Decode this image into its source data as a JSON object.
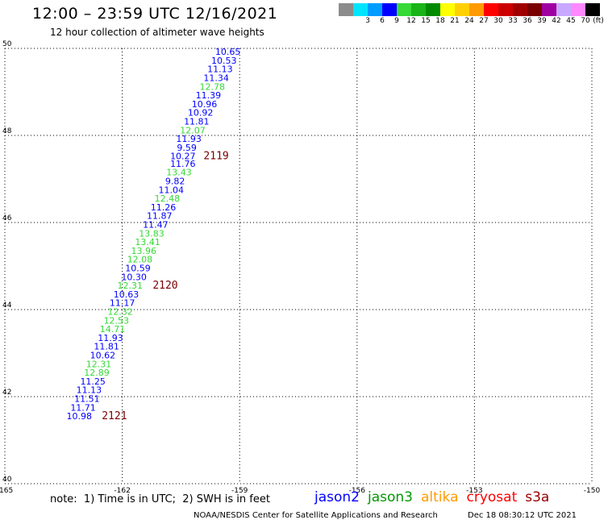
{
  "header": {
    "title": "12:00 – 23:59 UTC 12/16/2021",
    "subtitle": "12 hour collection of altimeter wave heights"
  },
  "legend": {
    "unit": "(ft)",
    "swatches": [
      {
        "label": "",
        "color": "#8c8c8c"
      },
      {
        "label": "3",
        "color": "#00e5ff"
      },
      {
        "label": "6",
        "color": "#009cff"
      },
      {
        "label": "9",
        "color": "#0000ff"
      },
      {
        "label": "12",
        "color": "#36d936"
      },
      {
        "label": "15",
        "color": "#18b418"
      },
      {
        "label": "18",
        "color": "#008a00"
      },
      {
        "label": "21",
        "color": "#ffff00"
      },
      {
        "label": "24",
        "color": "#ffd000"
      },
      {
        "label": "27",
        "color": "#ff9a00"
      },
      {
        "label": "30",
        "color": "#ff0000"
      },
      {
        "label": "33",
        "color": "#cc0000"
      },
      {
        "label": "36",
        "color": "#a00000"
      },
      {
        "label": "39",
        "color": "#7a0000"
      },
      {
        "label": "42",
        "color": "#a000a0"
      },
      {
        "label": "45",
        "color": "#c8a8ff"
      },
      {
        "label": "70",
        "color": "#ff88ff"
      },
      {
        "label": "",
        "color": "#000000"
      }
    ]
  },
  "chart_data": {
    "type": "scatter",
    "x_ticks": [
      "-165",
      "-162",
      "-159",
      "-156",
      "-153",
      "-150"
    ],
    "y_ticks": [
      "40",
      "42",
      "44",
      "46",
      "48",
      "50"
    ],
    "xlim": [
      -165,
      -150
    ],
    "ylim": [
      40,
      50
    ],
    "grid": true,
    "points": [
      {
        "lon": -159.3,
        "lat": 49.85,
        "value": "10.65",
        "color": "#0000ff"
      },
      {
        "lon": -159.4,
        "lat": 49.65,
        "value": "10.53",
        "color": "#0000ff"
      },
      {
        "lon": -159.5,
        "lat": 49.45,
        "value": "11.13",
        "color": "#0000ff"
      },
      {
        "lon": -159.6,
        "lat": 49.25,
        "value": "11.34",
        "color": "#0000ff"
      },
      {
        "lon": -159.7,
        "lat": 49.05,
        "value": "12.78",
        "color": "#36d936"
      },
      {
        "lon": -159.8,
        "lat": 48.85,
        "value": "11.39",
        "color": "#0000ff"
      },
      {
        "lon": -159.9,
        "lat": 48.65,
        "value": "10.96",
        "color": "#0000ff"
      },
      {
        "lon": -160.0,
        "lat": 48.45,
        "value": "10.92",
        "color": "#0000ff"
      },
      {
        "lon": -160.1,
        "lat": 48.25,
        "value": "11.81",
        "color": "#0000ff"
      },
      {
        "lon": -160.2,
        "lat": 48.05,
        "value": "12.07",
        "color": "#36d936"
      },
      {
        "lon": -160.3,
        "lat": 47.85,
        "value": "11.93",
        "color": "#0000ff"
      },
      {
        "lon": -160.35,
        "lat": 47.65,
        "value": "9.59",
        "color": "#0000ff"
      },
      {
        "lon": -160.45,
        "lat": 47.45,
        "value": "10.27",
        "color": "#0000ff"
      },
      {
        "lon": -160.45,
        "lat": 47.28,
        "value": "11.76",
        "color": "#0000ff"
      },
      {
        "lon": -160.55,
        "lat": 47.08,
        "value": "13.43",
        "color": "#36d936"
      },
      {
        "lon": -160.65,
        "lat": 46.88,
        "value": "9.82",
        "color": "#0000ff"
      },
      {
        "lon": -160.75,
        "lat": 46.68,
        "value": "11.04",
        "color": "#0000ff"
      },
      {
        "lon": -160.85,
        "lat": 46.48,
        "value": "12.48",
        "color": "#36d936"
      },
      {
        "lon": -160.95,
        "lat": 46.28,
        "value": "11.26",
        "color": "#0000ff"
      },
      {
        "lon": -161.05,
        "lat": 46.08,
        "value": "11.87",
        "color": "#0000ff"
      },
      {
        "lon": -161.15,
        "lat": 45.88,
        "value": "11.47",
        "color": "#0000ff"
      },
      {
        "lon": -161.25,
        "lat": 45.68,
        "value": "13.83",
        "color": "#36d936"
      },
      {
        "lon": -161.35,
        "lat": 45.48,
        "value": "13.41",
        "color": "#36d936"
      },
      {
        "lon": -161.45,
        "lat": 45.28,
        "value": "13.96",
        "color": "#36d936"
      },
      {
        "lon": -161.55,
        "lat": 45.08,
        "value": "12.08",
        "color": "#36d936"
      },
      {
        "lon": -161.6,
        "lat": 44.88,
        "value": "10.59",
        "color": "#0000ff"
      },
      {
        "lon": -161.7,
        "lat": 44.68,
        "value": "10.30",
        "color": "#0000ff"
      },
      {
        "lon": -161.8,
        "lat": 44.48,
        "value": "12.31",
        "color": "#36d936"
      },
      {
        "lon": -161.9,
        "lat": 44.28,
        "value": "10.63",
        "color": "#0000ff"
      },
      {
        "lon": -162.0,
        "lat": 44.08,
        "value": "11.17",
        "color": "#0000ff"
      },
      {
        "lon": -162.05,
        "lat": 43.88,
        "value": "12.32",
        "color": "#36d936"
      },
      {
        "lon": -162.15,
        "lat": 43.68,
        "value": "12.53",
        "color": "#36d936"
      },
      {
        "lon": -162.25,
        "lat": 43.48,
        "value": "14.71",
        "color": "#36d936"
      },
      {
        "lon": -162.3,
        "lat": 43.28,
        "value": "11.93",
        "color": "#0000ff"
      },
      {
        "lon": -162.4,
        "lat": 43.08,
        "value": "11.81",
        "color": "#0000ff"
      },
      {
        "lon": -162.5,
        "lat": 42.88,
        "value": "10.62",
        "color": "#0000ff"
      },
      {
        "lon": -162.6,
        "lat": 42.68,
        "value": "12.31",
        "color": "#36d936"
      },
      {
        "lon": -162.65,
        "lat": 42.48,
        "value": "12.89",
        "color": "#36d936"
      },
      {
        "lon": -162.75,
        "lat": 42.28,
        "value": "11.25",
        "color": "#0000ff"
      },
      {
        "lon": -162.85,
        "lat": 42.08,
        "value": "11.13",
        "color": "#0000ff"
      },
      {
        "lon": -162.9,
        "lat": 41.88,
        "value": "11.51",
        "color": "#0000ff"
      },
      {
        "lon": -163.0,
        "lat": 41.68,
        "value": "11.71",
        "color": "#0000ff"
      },
      {
        "lon": -163.1,
        "lat": 41.48,
        "value": "10.98",
        "color": "#0000ff"
      }
    ],
    "time_labels": [
      {
        "lon": -159.6,
        "lat": 47.45,
        "text": "2119",
        "color": "#7a0000"
      },
      {
        "lon": -160.9,
        "lat": 44.48,
        "text": "2120",
        "color": "#7a0000"
      },
      {
        "lon": -162.2,
        "lat": 41.48,
        "text": "2121",
        "color": "#7a0000"
      }
    ]
  },
  "footer": {
    "note": "note:  1) Time is in UTC;  2) SWH is in feet",
    "missions": [
      {
        "label": "jason2",
        "color": "#0000ff"
      },
      {
        "label": "jason3",
        "color": "#009900"
      },
      {
        "label": "altika",
        "color": "#ff9a00"
      },
      {
        "label": "cryosat",
        "color": "#ff0000"
      },
      {
        "label": "s3a",
        "color": "#990000"
      }
    ],
    "credit": "NOAA/NESDIS Center for Satellite Applications and Research",
    "timestamp": "Dec 18 08:30:12 UTC 2021"
  }
}
